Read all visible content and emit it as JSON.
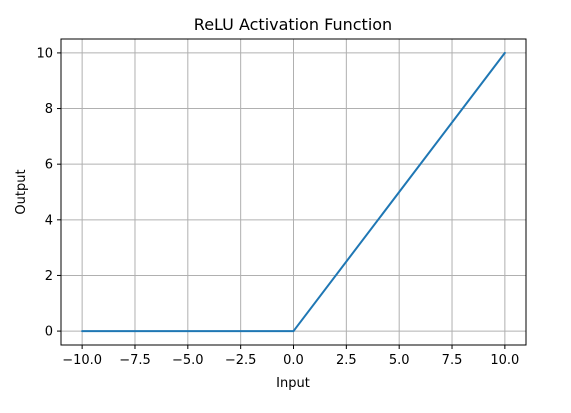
{
  "chart_data": {
    "type": "line",
    "title": "ReLU Activation Function",
    "xlabel": "Input",
    "ylabel": "Output",
    "xlim": [
      -11,
      11
    ],
    "ylim": [
      -0.5,
      10.5
    ],
    "grid": true,
    "x_ticks": [
      -10.0,
      -7.5,
      -5.0,
      -2.5,
      0.0,
      2.5,
      5.0,
      7.5,
      10.0
    ],
    "x_tick_labels": [
      "−10.0",
      "−7.5",
      "−5.0",
      "−2.5",
      "0.0",
      "2.5",
      "5.0",
      "7.5",
      "10.0"
    ],
    "y_ticks": [
      0,
      2,
      4,
      6,
      8,
      10
    ],
    "y_tick_labels": [
      "0",
      "2",
      "4",
      "6",
      "8",
      "10"
    ],
    "series": [
      {
        "color": "#1f77b4",
        "x": [
          -10,
          0,
          0.1,
          10
        ],
        "y": [
          0,
          0,
          0.1,
          10
        ]
      }
    ]
  },
  "colors": {
    "line": "#1f77b4",
    "grid": "#b0b0b0",
    "axes": "#000000"
  }
}
